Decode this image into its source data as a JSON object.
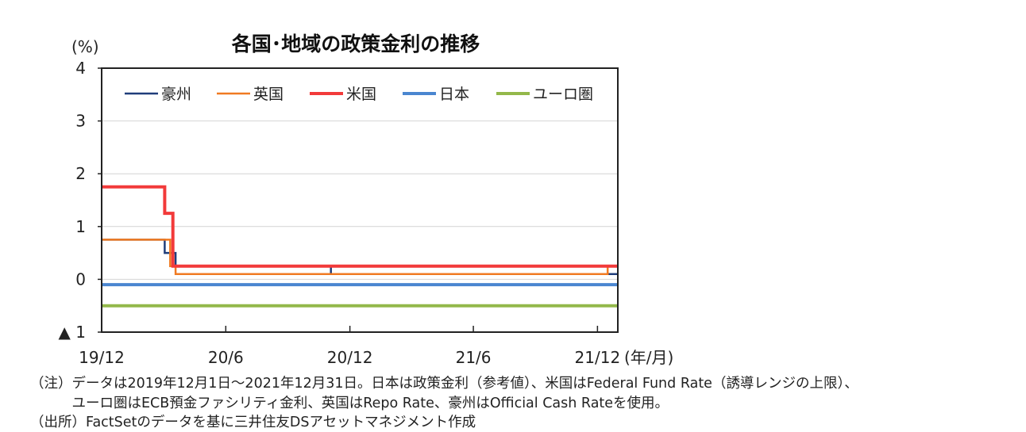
{
  "chart_data": {
    "type": "line",
    "title": "各国･地域の政策金利の推移",
    "ylabel": "(%)",
    "xlabel": "(年/月)",
    "ylim": [
      -1,
      4
    ],
    "yticks": [
      {
        "value": 4,
        "label": "4"
      },
      {
        "value": 3,
        "label": "3"
      },
      {
        "value": 2,
        "label": "2"
      },
      {
        "value": 1,
        "label": "1"
      },
      {
        "value": 0,
        "label": "0"
      },
      {
        "value": -1,
        "label": "▲ 1"
      }
    ],
    "xlim": [
      "2019-12-01",
      "2021-12-31"
    ],
    "xticks": [
      {
        "date": "2019-12-01",
        "label": "19/12"
      },
      {
        "date": "2020-06-01",
        "label": "20/6"
      },
      {
        "date": "2020-12-01",
        "label": "20/12"
      },
      {
        "date": "2021-06-01",
        "label": "21/6"
      },
      {
        "date": "2021-12-01",
        "label": "21/12"
      }
    ],
    "grid": true,
    "legend_position": "top",
    "series": [
      {
        "name": "豪州",
        "color": "#1f3d7a",
        "width": 2.5,
        "points": [
          [
            "2019-12-01",
            0.75
          ],
          [
            "2020-03-03",
            0.75
          ],
          [
            "2020-03-03",
            0.5
          ],
          [
            "2020-03-19",
            0.5
          ],
          [
            "2020-03-19",
            0.25
          ],
          [
            "2020-11-03",
            0.25
          ],
          [
            "2020-11-03",
            0.1
          ],
          [
            "2021-12-31",
            0.1
          ]
        ]
      },
      {
        "name": "英国",
        "color": "#f07a22",
        "width": 2.5,
        "points": [
          [
            "2019-12-01",
            0.75
          ],
          [
            "2020-03-11",
            0.75
          ],
          [
            "2020-03-11",
            0.25
          ],
          [
            "2020-03-19",
            0.25
          ],
          [
            "2020-03-19",
            0.1
          ],
          [
            "2021-12-16",
            0.1
          ],
          [
            "2021-12-16",
            0.25
          ],
          [
            "2021-12-31",
            0.25
          ]
        ]
      },
      {
        "name": "米国",
        "color": "#f23a3a",
        "width": 4,
        "points": [
          [
            "2019-12-01",
            1.75
          ],
          [
            "2020-03-03",
            1.75
          ],
          [
            "2020-03-03",
            1.25
          ],
          [
            "2020-03-15",
            1.25
          ],
          [
            "2020-03-15",
            0.25
          ],
          [
            "2021-12-31",
            0.25
          ]
        ]
      },
      {
        "name": "日本",
        "color": "#4a86d0",
        "width": 4,
        "points": [
          [
            "2019-12-01",
            -0.1
          ],
          [
            "2021-12-31",
            -0.1
          ]
        ]
      },
      {
        "name": "ユーロ圏",
        "color": "#93b84a",
        "width": 4,
        "points": [
          [
            "2019-12-01",
            -0.5
          ],
          [
            "2021-12-31",
            -0.5
          ]
        ]
      }
    ]
  },
  "notes": [
    "（注）データは2019年12月1日～2021年12月31日。日本は政策金利（参考値）、米国はFederal Fund Rate（誘導レンジの上限）、",
    "　　　ユーロ圏はECB預金ファシリティ金利、英国はRepo Rate、豪州はOfficial Cash Rateを使用。",
    "（出所）FactSetのデータを基に三井住友DSアセットマネジメント作成"
  ]
}
